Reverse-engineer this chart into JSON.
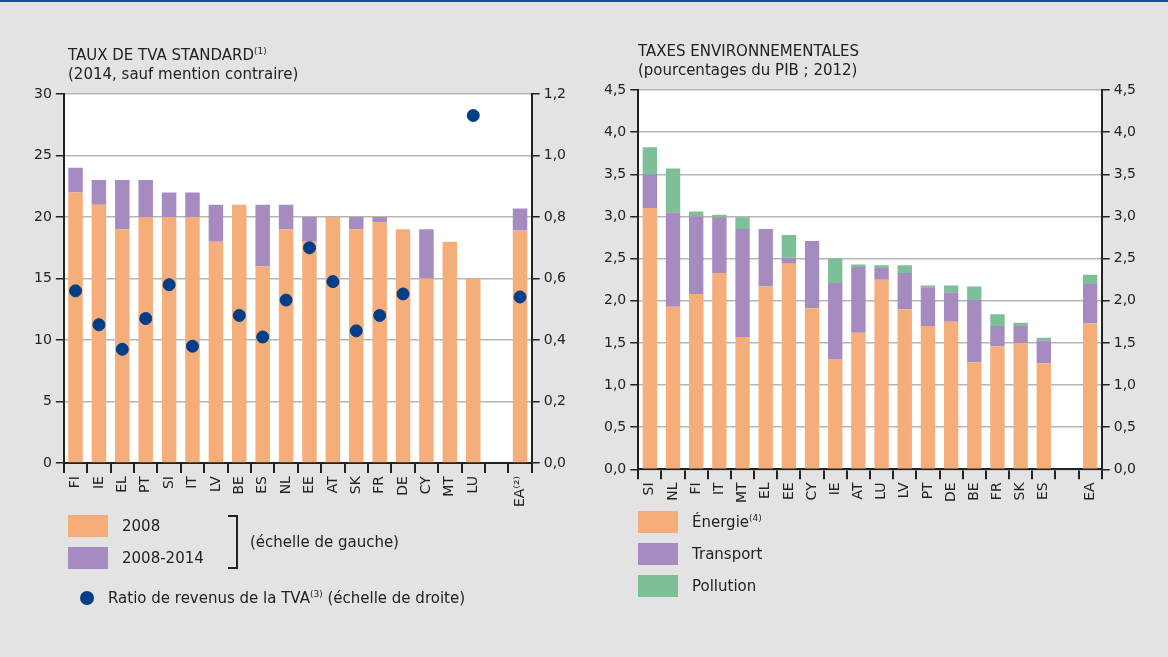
{
  "chart_data": [
    {
      "type": "bar",
      "title": "TAUX DE TVA STANDARD$^{(1)}$",
      "subtitle": "(2014, sauf mention contraire)",
      "categories": [
        "FI",
        "IE",
        "EL",
        "PT",
        "SI",
        "IT",
        "LV",
        "BE",
        "ES",
        "NL",
        "EE",
        "AT",
        "SK",
        "FR",
        "DE",
        "CY",
        "MT",
        "LU",
        null,
        "EA⁽²⁾"
      ],
      "series": [
        {
          "name": "2008",
          "color": "#f5ad7a",
          "values": [
            22,
            21,
            19,
            20,
            20,
            20,
            18,
            21,
            16,
            19,
            18,
            20,
            19,
            19.6,
            19,
            15,
            18,
            15,
            null,
            18.9
          ]
        },
        {
          "name": "2008-2014",
          "color": "#a68bc1",
          "values": [
            2,
            2,
            4,
            3,
            2,
            2,
            3,
            0,
            5,
            2,
            2,
            0,
            1,
            0.4,
            0,
            4,
            0,
            0,
            null,
            1.8
          ]
        },
        {
          "name": "Ratio de revenus de la TVA$^{(3)}$ (échelle de droite)",
          "type": "scatter",
          "axis": "y2",
          "color": "#003f87",
          "values": [
            0.56,
            0.45,
            0.37,
            0.47,
            0.58,
            0.38,
            null,
            0.48,
            0.41,
            0.53,
            0.7,
            0.59,
            0.43,
            0.48,
            0.55,
            null,
            null,
            1.13,
            null,
            0.54
          ]
        }
      ],
      "stacked": true,
      "marker": "circle",
      "ylim": [
        0,
        30
      ],
      "yticks": [
        0,
        5,
        10,
        15,
        20,
        25,
        30
      ],
      "y2lim": [
        0,
        1.2
      ],
      "y2ticks": [
        {
          "value": 0,
          "label": "0,0"
        },
        {
          "value": 0.2,
          "label": "0,2"
        },
        {
          "value": 0.4,
          "label": "0,4"
        },
        {
          "value": 0.6,
          "label": "0,6"
        },
        {
          "value": 0.8,
          "label": "0,8"
        },
        {
          "value": 1.0,
          "label": "1,0"
        },
        {
          "value": 1.2,
          "label": "1,2"
        }
      ],
      "grid": "y",
      "legend": "bottom",
      "annotations": [
        "(échelle de gauche)"
      ]
    },
    {
      "type": "bar",
      "title": "TAXES ENVIRONNEMENTALES",
      "subtitle": "(pourcentages du PIB ; 2012)",
      "categories": [
        "SI",
        "NL",
        "FI",
        "IT",
        "MT",
        "EL",
        "EE",
        "CY",
        "IE",
        "AT",
        "LU",
        "LV",
        "PT",
        "DE",
        "BE",
        "FR",
        "SK",
        "ES",
        null,
        "EA"
      ],
      "series": [
        {
          "name": "Énergie$^{(4)}$",
          "color": "#f5ad7a",
          "values": [
            3.1,
            1.93,
            2.08,
            2.33,
            1.57,
            2.17,
            2.44,
            1.91,
            1.31,
            1.62,
            2.25,
            1.9,
            1.7,
            1.75,
            1.27,
            1.46,
            1.5,
            1.26,
            null,
            1.73
          ]
        },
        {
          "name": "Transport",
          "color": "#a68bc1",
          "values": [
            0.4,
            1.12,
            0.92,
            0.66,
            1.28,
            0.68,
            0.07,
            0.8,
            0.9,
            0.78,
            0.14,
            0.43,
            0.46,
            0.35,
            0.74,
            0.24,
            0.2,
            0.27,
            null,
            0.47
          ]
        },
        {
          "name": "Pollution",
          "color": "#7dbf96",
          "values": [
            0.32,
            0.52,
            0.06,
            0.03,
            0.14,
            0,
            0.27,
            0,
            0.29,
            0.03,
            0.03,
            0.09,
            0.02,
            0.08,
            0.16,
            0.14,
            0.04,
            0.03,
            null,
            0.11
          ]
        }
      ],
      "stacked": true,
      "ylim": [
        0,
        4.5
      ],
      "yticks": [
        {
          "value": 0,
          "label": "0,0"
        },
        {
          "value": 0.5,
          "label": "0,5"
        },
        {
          "value": 1,
          "label": "1,0"
        },
        {
          "value": 1.5,
          "label": "1,5"
        },
        {
          "value": 2,
          "label": "2,0"
        },
        {
          "value": 2.5,
          "label": "2,5"
        },
        {
          "value": 3,
          "label": "3,0"
        },
        {
          "value": 3.5,
          "label": "3,5"
        },
        {
          "value": 4,
          "label": "4,0"
        },
        {
          "value": 4.5,
          "label": "4,5"
        }
      ],
      "y2lim": [
        0,
        4.5
      ],
      "y2ticks": [
        {
          "value": 0,
          "label": "0,0"
        },
        {
          "value": 0.5,
          "label": "0,5"
        },
        {
          "value": 1,
          "label": "1,0"
        },
        {
          "value": 1.5,
          "label": "1,5"
        },
        {
          "value": 2,
          "label": "2,0"
        },
        {
          "value": 2.5,
          "label": "2,5"
        },
        {
          "value": 3,
          "label": "3,0"
        },
        {
          "value": 3.5,
          "label": "3,5"
        },
        {
          "value": 4,
          "label": "4,0"
        },
        {
          "value": 4.5,
          "label": "4,5"
        }
      ],
      "grid": "y",
      "legend": "bottom"
    }
  ]
}
